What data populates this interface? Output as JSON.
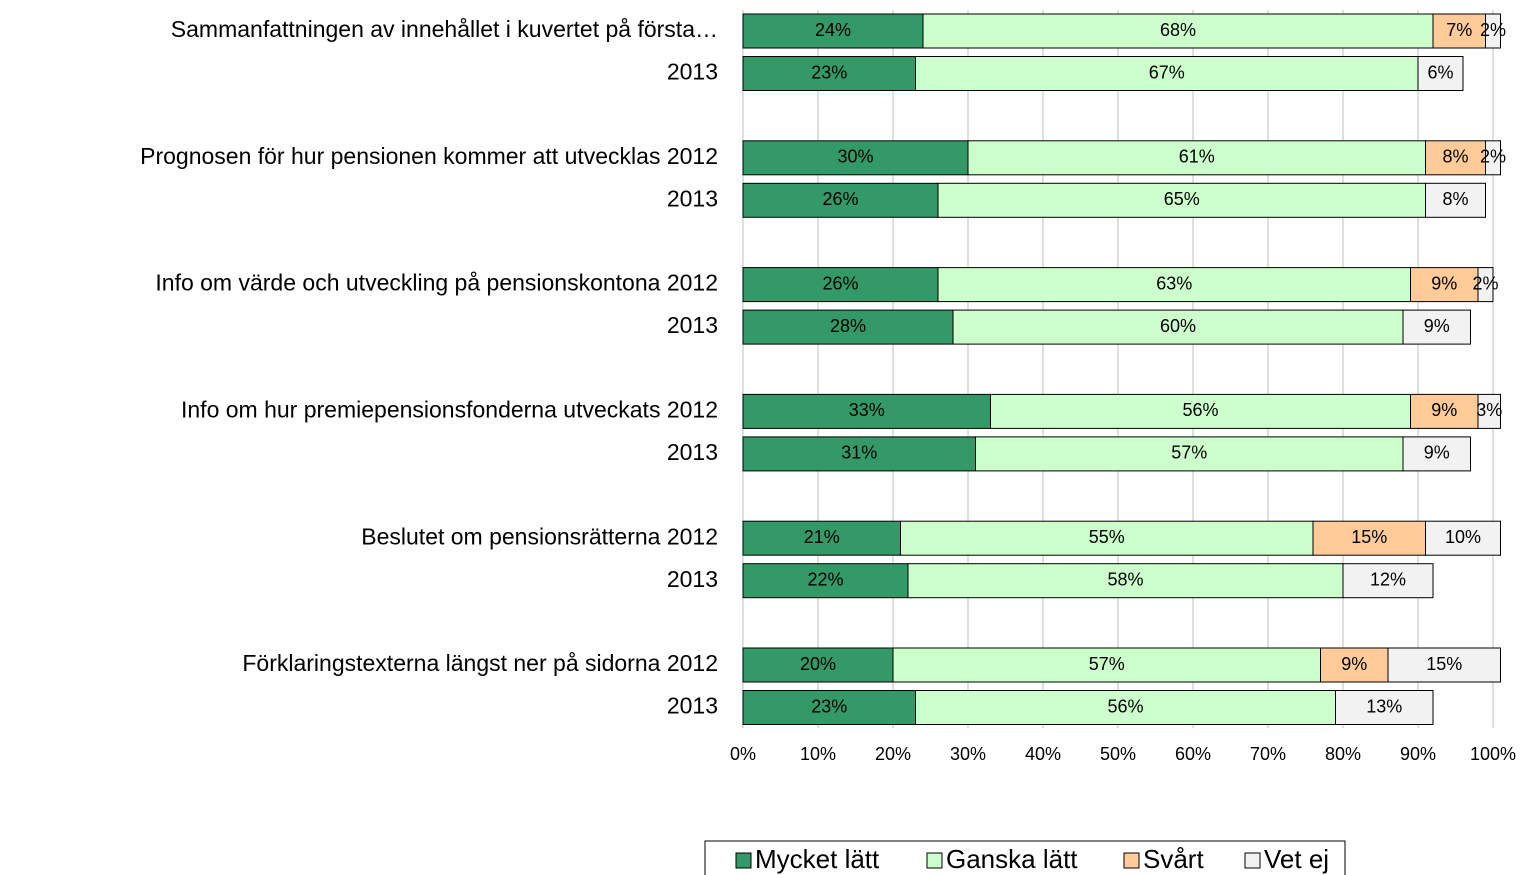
{
  "chart_data": {
    "type": "stacked_barh",
    "categories": [
      "Sammanfattningen av innehållet i kuvertet på första…",
      "2013",
      "Prognosen för hur pensionen kommer att utvecklas 2012",
      "2013",
      "Info om värde och utveckling på pensionskontona 2012",
      "2013",
      "Info om hur premiepensionsfonderna utveckats 2012",
      "2013",
      "Beslutet om pensionsrätterna 2012",
      "2013",
      "Förklaringstexterna längst ner på sidorna 2012",
      "2013"
    ],
    "series": [
      {
        "name": "Mycket lätt",
        "color": "#339966",
        "values": [
          24,
          23,
          30,
          26,
          26,
          28,
          33,
          31,
          21,
          22,
          20,
          23
        ],
        "value_labels": [
          "24%",
          "23%",
          "30%",
          "26%",
          "26%",
          "28%",
          "33%",
          "31%",
          "21%",
          "22%",
          "20%",
          "23%"
        ]
      },
      {
        "name": "Ganska lätt",
        "color": "#ccffcc",
        "values": [
          68,
          67,
          61,
          65,
          63,
          60,
          56,
          57,
          55,
          58,
          57,
          56
        ],
        "value_labels": [
          "68%",
          "67%",
          "61%",
          "65%",
          "63%",
          "60%",
          "56%",
          "57%",
          "55%",
          "58%",
          "57%",
          "56%"
        ]
      },
      {
        "name": "Svårt",
        "color": "#ffcc99",
        "values": [
          7,
          null,
          8,
          null,
          9,
          null,
          9,
          null,
          15,
          null,
          9,
          null
        ],
        "value_labels": [
          "7%",
          null,
          "8%",
          null,
          "9%",
          null,
          "9%",
          null,
          "15%",
          null,
          "9%",
          null
        ]
      },
      {
        "name": "Vet ej",
        "color": "#f2f2f2",
        "values": [
          2,
          6,
          2,
          8,
          2,
          9,
          3,
          9,
          10,
          12,
          15,
          13
        ],
        "value_labels": [
          "2%",
          "6%",
          "2%",
          "8%",
          "2%",
          "9%",
          "3%",
          "9%",
          "10%",
          "12%",
          "15%",
          "13%"
        ]
      }
    ],
    "xlim": [
      0,
      100
    ],
    "xticks": [
      {
        "value": 0,
        "label": "0%"
      },
      {
        "value": 10,
        "label": "10%"
      },
      {
        "value": 20,
        "label": "20%"
      },
      {
        "value": 30,
        "label": "30%"
      },
      {
        "value": 40,
        "label": "40%"
      },
      {
        "value": 50,
        "label": "50%"
      },
      {
        "value": 60,
        "label": "60%"
      },
      {
        "value": 70,
        "label": "70%"
      },
      {
        "value": 80,
        "label": "80%"
      },
      {
        "value": 90,
        "label": "90%"
      },
      {
        "value": 100,
        "label": "100%"
      }
    ],
    "grid": true,
    "legend": "bottom"
  }
}
